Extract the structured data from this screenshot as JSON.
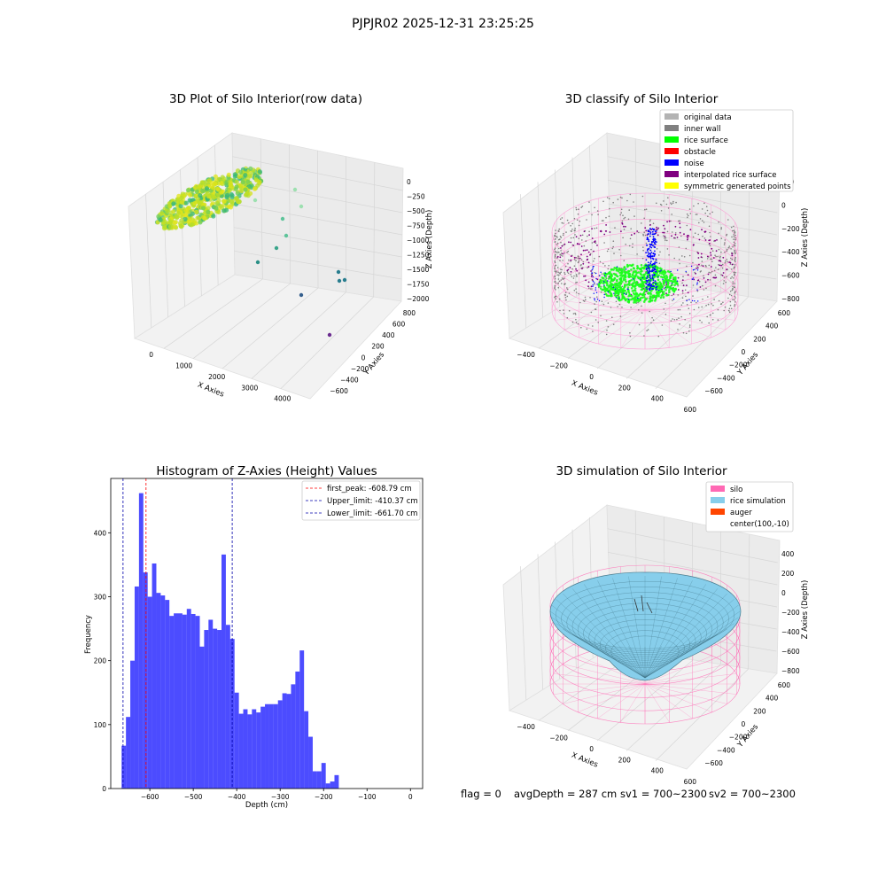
{
  "suptitle": "PJPJR02 2025-12-31 23:25:25",
  "panels": {
    "raw": {
      "title": "3D Plot of Silo Interior(row data)",
      "xlabel": "X Axies",
      "ylabel": "Y Axies",
      "zlabel": "Z Axies (Depth)",
      "xticks": [
        "0",
        "1000",
        "2000",
        "3000",
        "4000"
      ],
      "yticks": [
        "800",
        "600",
        "400",
        "200",
        "0",
        "−200",
        "−400",
        "−600"
      ],
      "zticks": [
        "0",
        "−250",
        "−500",
        "−750",
        "−1000",
        "−1250",
        "−1500",
        "−1750",
        "−2000"
      ]
    },
    "classify": {
      "title": "3D classify of Silo Interior",
      "xlabel": "X Axies",
      "ylabel": "Y Axies",
      "zlabel": "Z Axies (Depth)",
      "xticks": [
        "−400",
        "−200",
        "0",
        "200",
        "400",
        "600"
      ],
      "yticks": [
        "600",
        "400",
        "200",
        "0",
        "−200",
        "−400",
        "−600"
      ],
      "zticks": [
        "200",
        "0",
        "−200",
        "−400",
        "−600",
        "−800"
      ],
      "legend": [
        {
          "label": "original data",
          "color": "#b3b3b3"
        },
        {
          "label": "inner wall",
          "color": "#808080"
        },
        {
          "label": "rice surface",
          "color": "#00ff00"
        },
        {
          "label": "obstacle",
          "color": "#ff0000"
        },
        {
          "label": "noise",
          "color": "#0000ff"
        },
        {
          "label": "interpolated rice surface",
          "color": "#800080"
        },
        {
          "label": "symmetric generated points",
          "color": "#ffff00"
        }
      ]
    },
    "simulation": {
      "title": "3D simulation of Silo Interior",
      "xlabel": "X Axies",
      "ylabel": "Y Axies",
      "zlabel": "Z Axies (Depth)",
      "xticks": [
        "−400",
        "−200",
        "0",
        "200",
        "400",
        "600"
      ],
      "yticks": [
        "600",
        "400",
        "200",
        "0",
        "−200",
        "−400",
        "−600"
      ],
      "zticks": [
        "400",
        "200",
        "0",
        "−200",
        "−400",
        "−600",
        "−800"
      ],
      "legend": [
        {
          "label": "silo",
          "color": "#ff69b4"
        },
        {
          "label": "rice simulation",
          "color": "#87ceeb"
        },
        {
          "label": "auger",
          "color": "#ff4500"
        },
        {
          "label": "center(100,-10)",
          "color": "none"
        }
      ]
    }
  },
  "footer": {
    "flag": "flag = 0",
    "avg_depth": "avgDepth = 287 cm",
    "sv1": "sv1 = 700~2300",
    "sv2": "sv2 = 700~2300"
  },
  "chart_data": {
    "type": "bar",
    "title": "Histogram of Z-Axies (Height) Values",
    "xlabel": "Depth (cm)",
    "ylabel": "Frequency",
    "bar_color": "#0000ff",
    "bar_alpha": 0.7,
    "bin_start": -665,
    "bin_width": 10,
    "values": [
      67,
      112,
      200,
      316,
      462,
      338,
      300,
      352,
      306,
      302,
      295,
      270,
      274,
      274,
      272,
      281,
      273,
      270,
      222,
      248,
      264,
      250,
      248,
      366,
      256,
      234,
      150,
      117,
      124,
      116,
      124,
      119,
      128,
      132,
      132,
      132,
      138,
      149,
      148,
      163,
      183,
      216,
      121,
      81,
      27,
      27,
      40,
      8,
      11,
      21
    ],
    "xlim": [
      -690,
      28
    ],
    "ylim": [
      0,
      485
    ],
    "xticks": [
      -600,
      -500,
      -400,
      -300,
      -200,
      -100,
      0
    ],
    "xtick_labels": [
      "−600",
      "−500",
      "−400",
      "−300",
      "−200",
      "−100",
      "0"
    ],
    "yticks": [
      0,
      100,
      200,
      300,
      400
    ],
    "ytick_labels": [
      "0",
      "100",
      "200",
      "300",
      "400"
    ],
    "vlines": [
      {
        "name": "first_peak: -608.79 cm",
        "x": -608.79,
        "color": "#ff0000"
      },
      {
        "name": "Upper_limit: -410.37 cm",
        "x": -410.37,
        "color": "#0000aa"
      },
      {
        "name": "Lower_limit: -661.70 cm",
        "x": -661.7,
        "color": "#0000aa"
      }
    ],
    "legend_position": "upper right"
  }
}
